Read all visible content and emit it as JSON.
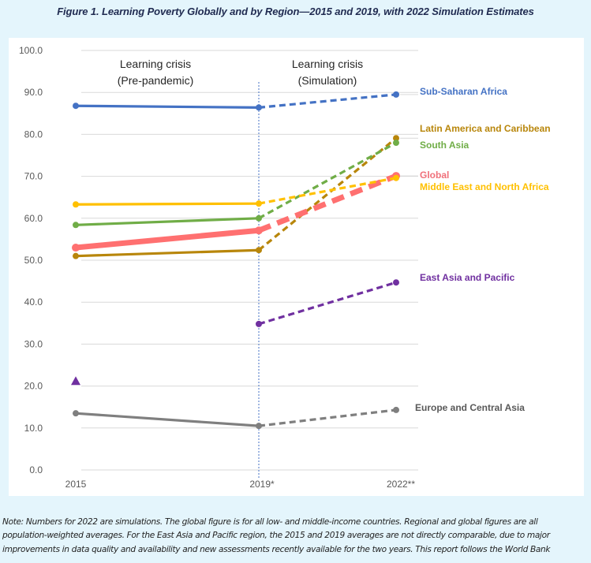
{
  "figure_title": "Figure 1. Learning Poverty Globally and by Region—2015 and 2019, with 2022 Simulation Estimates",
  "note": {
    "lines": [
      "Note: Numbers for 2022 are simulations. The global figure is for all low- and middle-income countries. Regional and global figures are all",
      "population-weighted averages. For the East Asia and Pacific region, the 2015 and 2019 averages are not directly comparable, due to major",
      "improvements in data quality and availability and new assessments recently available for the two years. This report follows the World Bank"
    ]
  },
  "chart_data": {
    "type": "line",
    "title": "Figure 1. Learning Poverty Globally and by Region—2015 and 2019, with 2022 Simulation Estimates",
    "xlabel": "",
    "ylabel": "",
    "categories": [
      "2015",
      "2019*",
      "2022**"
    ],
    "yticks": [
      "100.0",
      "90.0",
      "80.0",
      "70.0",
      "60.0",
      "50.0",
      "40.0",
      "30.0",
      "20.0",
      "10.0",
      "0.0"
    ],
    "ylim": [
      0,
      100
    ],
    "grid": true,
    "annotations": {
      "pre_pandemic": [
        "Learning crisis",
        "(Pre-pandemic)"
      ],
      "simulation": [
        "Learning crisis",
        "(Simulation)"
      ]
    },
    "note_solid": "2015–2019 observed (solid), 2019–2022 simulated (dashed)",
    "series": [
      {
        "name": "Sub-Saharan Africa",
        "color": "#4472c4",
        "values": [
          86.8,
          86.4,
          89.5
        ],
        "emphasis": false
      },
      {
        "name": "Latin America and Caribbean",
        "color": "#b8860b",
        "values": [
          51.0,
          52.4,
          79.1
        ],
        "emphasis": false
      },
      {
        "name": "South Asia",
        "color": "#70ad47",
        "values": [
          58.4,
          60.0,
          78.0
        ],
        "emphasis": false
      },
      {
        "name": "Global",
        "color": "#ff7070",
        "values": [
          53.0,
          57.1,
          70.1
        ],
        "emphasis": true
      },
      {
        "name": "Middle East and North Africa",
        "color": "#ffc000",
        "values": [
          63.3,
          63.5,
          69.6
        ],
        "emphasis": false
      },
      {
        "name": "East Asia and Pacific",
        "color": "#7030a0",
        "values": [
          null,
          34.8,
          44.7
        ],
        "emphasis": false,
        "extra_marker": {
          "category": "2015",
          "value": 21.2,
          "shape": "triangle"
        }
      },
      {
        "name": "Europe and Central Asia",
        "color": "#7f7f7f",
        "values": [
          13.5,
          10.5,
          14.3
        ],
        "emphasis": false
      }
    ],
    "label_colors": {
      "Sub-Saharan Africa": "#4472c4",
      "Latin America and Caribbean": "#b8860b",
      "South Asia": "#70ad47",
      "Global": "#f0707a",
      "Middle East and North Africa": "#ffc000",
      "East Asia and Pacific": "#7030a0",
      "Europe and Central Asia": "#595959"
    }
  }
}
